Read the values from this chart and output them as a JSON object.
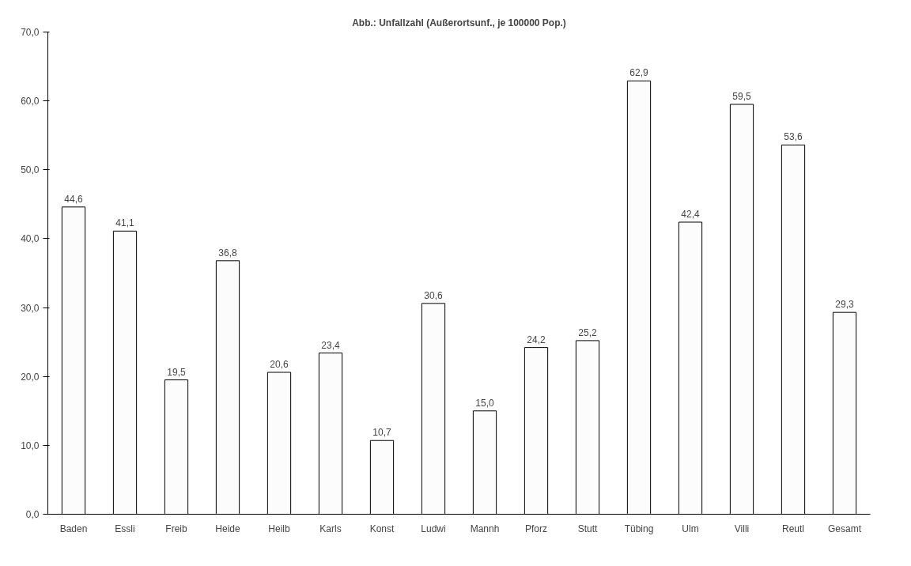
{
  "chart_data": {
    "type": "bar",
    "title": "Abb.: Unfallzahl (Außerortsunf., je 100000 Pop.)",
    "categories": [
      "Baden",
      "Essli",
      "Freib",
      "Heide",
      "Heilb",
      "Karls",
      "Konst",
      "Ludwi",
      "Mannh",
      "Pforz",
      "Stutt",
      "Tübing",
      "Ulm",
      "Villi",
      "Reutl",
      "Gesamt"
    ],
    "values": [
      44.6,
      41.1,
      19.5,
      36.8,
      20.6,
      23.4,
      10.7,
      30.6,
      15.0,
      24.2,
      25.2,
      62.9,
      42.4,
      59.5,
      53.6,
      29.3
    ],
    "value_labels": [
      "44,6",
      "41,1",
      "19,5",
      "36,8",
      "20,6",
      "23,4",
      "10,7",
      "30,6",
      "15,0",
      "24,2",
      "25,2",
      "62,9",
      "42,4",
      "59,5",
      "53,6",
      "29,3"
    ],
    "color": "#fcfcfc",
    "ylim": [
      0,
      70
    ],
    "yticks": [
      {
        "value": 0,
        "label": "0,0"
      },
      {
        "value": 10,
        "label": "10,0"
      },
      {
        "value": 20,
        "label": "20,0"
      },
      {
        "value": 30,
        "label": "30,0"
      },
      {
        "value": 40,
        "label": "40,0"
      },
      {
        "value": 50,
        "label": "50,0"
      },
      {
        "value": 60,
        "label": "60,0"
      },
      {
        "value": 70,
        "label": "70,0"
      }
    ],
    "grid": false
  }
}
